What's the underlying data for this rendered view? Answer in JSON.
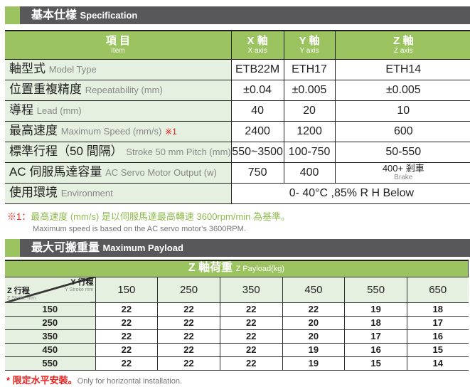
{
  "spec_header": {
    "zh": "基本仕樣",
    "en": "Specification"
  },
  "spec": {
    "head": {
      "item_zh": "項 目",
      "item_en": "Item",
      "cols": [
        {
          "zh": "X 軸",
          "en": "X axis"
        },
        {
          "zh": "Y 軸",
          "en": "Y axis"
        },
        {
          "zh": "Z 軸",
          "en": "Z axis"
        }
      ]
    },
    "rows": [
      {
        "zh": "軸型式",
        "en": "Model Type",
        "mark": "",
        "v": [
          "ETB22M",
          "ETH17",
          "ETH14"
        ]
      },
      {
        "zh": "位置重複精度",
        "en": "Repeatability (mm)",
        "mark": "",
        "v": [
          "±0.04",
          "±0.005",
          "±0.005"
        ]
      },
      {
        "zh": "導程",
        "en": "Lead (mm)",
        "mark": "",
        "v": [
          "40",
          "20",
          "10"
        ]
      },
      {
        "zh": "最高速度",
        "en": "Maximum Speed (mm/s)",
        "mark": "※1",
        "v": [
          "2400",
          "1200",
          "600"
        ]
      },
      {
        "zh": "標準行程（50 間隔）",
        "en": "Stroke 50 mm Pitch (mm)",
        "mark": "",
        "v": [
          "550~3500",
          "100-750",
          "50-550"
        ]
      },
      {
        "zh": "AC 伺服馬達容量",
        "en": "AC Servo Motor Output (w)",
        "mark": "",
        "v": [
          "750",
          "400",
          "400+ 剎車"
        ],
        "brake_en": "Brake"
      },
      {
        "zh": "使用環境",
        "en": "Environment",
        "mark": "",
        "v": [
          "0- 40°C ,85% R H Below"
        ]
      }
    ]
  },
  "note": {
    "mark": "※1：",
    "zh": "最高速度 (mm/s) 是以伺服馬達最高轉速 3600rpm/min 為基準。",
    "en": "Maximum speed is based on the AC servo motor's 3600RPM."
  },
  "payload_header": {
    "zh": "最大可搬重量",
    "en": "Maximum Payload"
  },
  "payload": {
    "title_zh": "Z 軸荷重",
    "title_en": "Z Payload(kg)",
    "y_label": "Y 行程",
    "y_label_en": "Y Stroke mm",
    "z_label": "Z 行程",
    "z_label_en": "Z Stroke mm",
    "y_strokes": [
      "150",
      "250",
      "350",
      "450",
      "550",
      "650"
    ],
    "rows": [
      {
        "z": "150",
        "v": [
          "22",
          "22",
          "22",
          "22",
          "19",
          "18"
        ]
      },
      {
        "z": "250",
        "v": [
          "22",
          "22",
          "22",
          "20",
          "18",
          "17"
        ]
      },
      {
        "z": "350",
        "v": [
          "22",
          "22",
          "22",
          "20",
          "17",
          "16"
        ]
      },
      {
        "z": "450",
        "v": [
          "22",
          "22",
          "22",
          "19",
          "16",
          "15"
        ]
      },
      {
        "z": "550",
        "v": [
          "22",
          "22",
          "22",
          "19",
          "15",
          "14"
        ]
      }
    ]
  },
  "footer": {
    "zh": "* 限定水平安裝。",
    "en": "Only for horizontal installation."
  }
}
